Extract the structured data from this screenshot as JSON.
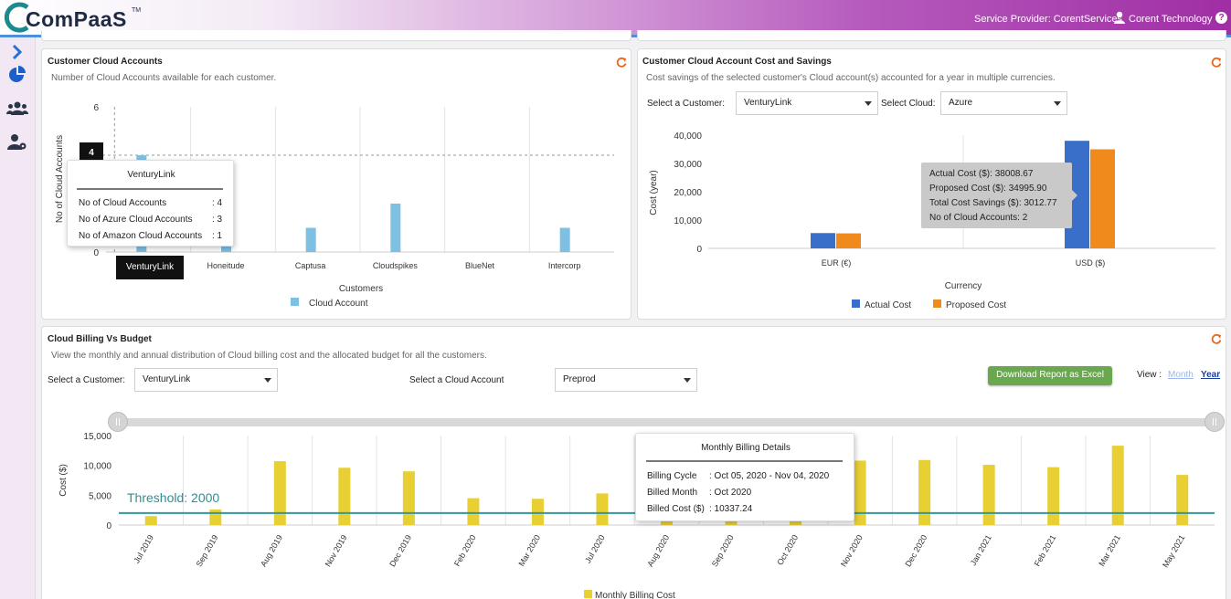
{
  "header": {
    "logo_text": "ComPaaS",
    "logo_tm": "TM",
    "provider": "Service Provider: CorentServices",
    "organization": "Corent Technology",
    "help_icon": "question-circle-icon"
  },
  "sidebar": {
    "items": [
      {
        "icon": "chevron-right-icon"
      },
      {
        "icon": "pie-chart-icon"
      },
      {
        "icon": "users-icon"
      },
      {
        "icon": "user-settings-icon"
      }
    ]
  },
  "panel_accounts": {
    "title": "Customer Cloud Accounts",
    "subtitle": "Number of Cloud Accounts available for each customer.",
    "tooltip": {
      "title": "VenturyLink",
      "rows": [
        {
          "label": "No of Cloud Accounts",
          "value": ": 4"
        },
        {
          "label": "No of Azure Cloud Accounts",
          "value": ": 3"
        },
        {
          "label": "No of Amazon Cloud Accounts",
          "value": ": 1"
        }
      ]
    },
    "crosshair_value": "4",
    "crosshair_label": "VenturyLink"
  },
  "panel_cost": {
    "title": "Customer Cloud Account Cost and Savings",
    "subtitle": "Cost savings of the selected customer's Cloud account(s) accounted for a year in multiple currencies.",
    "customer_label": "Select a Customer:",
    "customer_value": "VenturyLink",
    "cloud_label": "Select Cloud:",
    "cloud_value": "Azure",
    "tooltip": {
      "rows": [
        "Actual Cost ($): 38008.67",
        "Proposed Cost ($): 34995.90",
        "Total Cost Savings ($): 3012.77",
        "No of Cloud Accounts: 2"
      ]
    }
  },
  "panel_billing": {
    "title": "Cloud Billing Vs Budget",
    "subtitle": "View the monthly and annual distribution of Cloud billing cost and the allocated budget for all the customers.",
    "customer_label": "Select a Customer:",
    "customer_value": "VenturyLink",
    "account_label": "Select a Cloud Account",
    "account_value": "Preprod",
    "excel_button": "Download Report as Excel",
    "view_label": "View :",
    "view_month": "Month",
    "view_year": "Year",
    "tooltip": {
      "title": "Monthly Billing Details",
      "rows": [
        {
          "label": "Billing Cycle",
          "value": ": Oct 05, 2020 - Nov 04, 2020"
        },
        {
          "label": "Billed Month",
          "value": ": Oct 2020"
        },
        {
          "label": "Billed Cost ($)",
          "value": ": 10337.24"
        }
      ]
    }
  },
  "chart_data": [
    {
      "type": "bar",
      "categories": [
        "VenturyLink",
        "Honeitude",
        "Captusa",
        "Cloudspikes",
        "BlueNet",
        "Intercorp"
      ],
      "series": [
        {
          "name": "Cloud Account",
          "values": [
            4,
            1,
            1,
            2,
            0,
            1
          ]
        }
      ],
      "xlabel": "Customers",
      "ylabel": "No of Cloud Accounts",
      "ylim": [
        0,
        6
      ],
      "yticks": [
        "0",
        "6"
      ],
      "color": "#7ec0e2",
      "grid": true,
      "legend": "bottom"
    },
    {
      "type": "bar",
      "categories": [
        "EUR (€)",
        "USD ($)"
      ],
      "series": [
        {
          "name": "Actual Cost",
          "values": [
            5400,
            38008.67
          ],
          "color": "#3a6fc9"
        },
        {
          "name": "Proposed Cost",
          "values": [
            5300,
            34995.9
          ],
          "color": "#f08a1c"
        }
      ],
      "xlabel": "Currency",
      "ylabel": "Cost (year)",
      "ylim": [
        0,
        40000
      ],
      "yticks": [
        "0",
        "10,000",
        "20,000",
        "30,000",
        "40,000"
      ],
      "grid": true,
      "legend": "bottom"
    },
    {
      "type": "bar",
      "categories": [
        "Jul 2019",
        "Sep 2019",
        "Aug 2019",
        "Nov 2019",
        "Dec 2019",
        "Feb 2020",
        "Mar 2020",
        "Jul 2020",
        "Aug 2020",
        "Sep 2020",
        "Oct 2020",
        "Nov 2020",
        "Dec 2020",
        "Jan 2021",
        "Feb 2021",
        "Mar 2021",
        "May 2021"
      ],
      "series": [
        {
          "name": "Monthly Billing Cost",
          "values": [
            1500,
            2600,
            10700,
            9600,
            9000,
            4500,
            4400,
            5300,
            800,
            800,
            10337.24,
            10800,
            10900,
            10100,
            9700,
            13300,
            8400
          ]
        }
      ],
      "threshold": {
        "label": "Threshold: 2000",
        "value": 2000
      },
      "ylabel": "Cost ($)",
      "ylim": [
        0,
        15000
      ],
      "yticks": [
        "0",
        "5,000",
        "10,000",
        "15,000"
      ],
      "color": "#e8cf33",
      "grid": true,
      "legend": "bottom"
    }
  ]
}
